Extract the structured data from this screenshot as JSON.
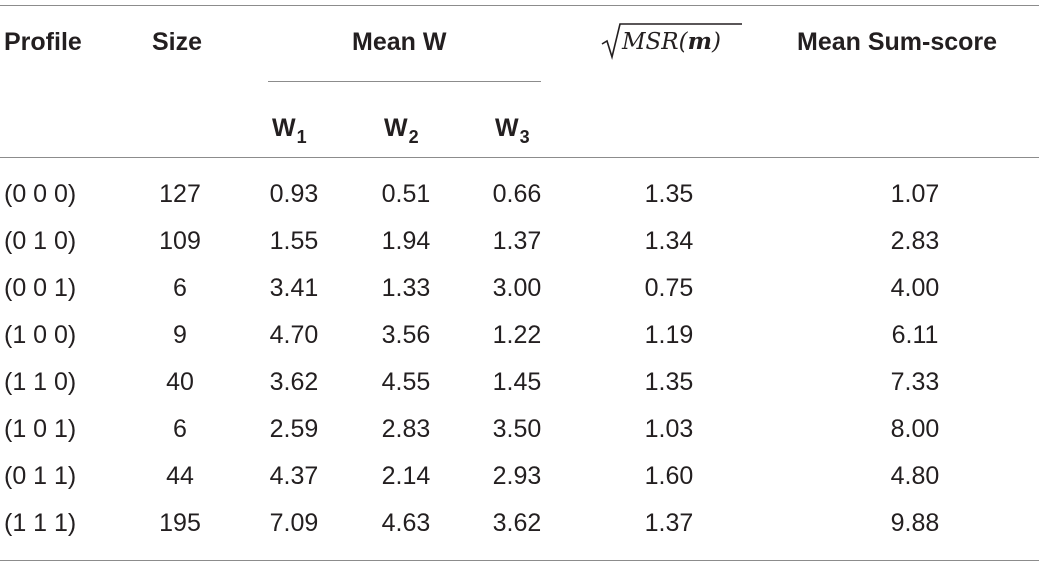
{
  "table": {
    "headers": {
      "profile": "Profile",
      "size": "Size",
      "mean_w": "Mean W",
      "w1": {
        "base": "W",
        "sub": "1"
      },
      "w2": {
        "base": "W",
        "sub": "2"
      },
      "w3": {
        "base": "W",
        "sub": "3"
      },
      "msr": {
        "radicand": "MSR",
        "argument": "m"
      },
      "mean_sum_score": "Mean Sum-score"
    },
    "rows": [
      {
        "profile": "(0 0 0)",
        "size": "127",
        "w1": "0.93",
        "w2": "0.51",
        "w3": "0.66",
        "msr": "1.35",
        "sum": "1.07"
      },
      {
        "profile": "(0 1 0)",
        "size": "109",
        "w1": "1.55",
        "w2": "1.94",
        "w3": "1.37",
        "msr": "1.34",
        "sum": "2.83"
      },
      {
        "profile": "(0 0 1)",
        "size": "6",
        "w1": "3.41",
        "w2": "1.33",
        "w3": "3.00",
        "msr": "0.75",
        "sum": "4.00"
      },
      {
        "profile": "(1 0 0)",
        "size": "9",
        "w1": "4.70",
        "w2": "3.56",
        "w3": "1.22",
        "msr": "1.19",
        "sum": "6.11"
      },
      {
        "profile": "(1 1 0)",
        "size": "40",
        "w1": "3.62",
        "w2": "4.55",
        "w3": "1.45",
        "msr": "1.35",
        "sum": "7.33"
      },
      {
        "profile": "(1 0 1)",
        "size": "6",
        "w1": "2.59",
        "w2": "2.83",
        "w3": "3.50",
        "msr": "1.03",
        "sum": "8.00"
      },
      {
        "profile": "(0 1 1)",
        "size": "44",
        "w1": "4.37",
        "w2": "2.14",
        "w3": "2.93",
        "msr": "1.60",
        "sum": "4.80"
      },
      {
        "profile": "(1 1 1)",
        "size": "195",
        "w1": "7.09",
        "w2": "4.63",
        "w3": "3.62",
        "msr": "1.37",
        "sum": "9.88"
      }
    ]
  }
}
